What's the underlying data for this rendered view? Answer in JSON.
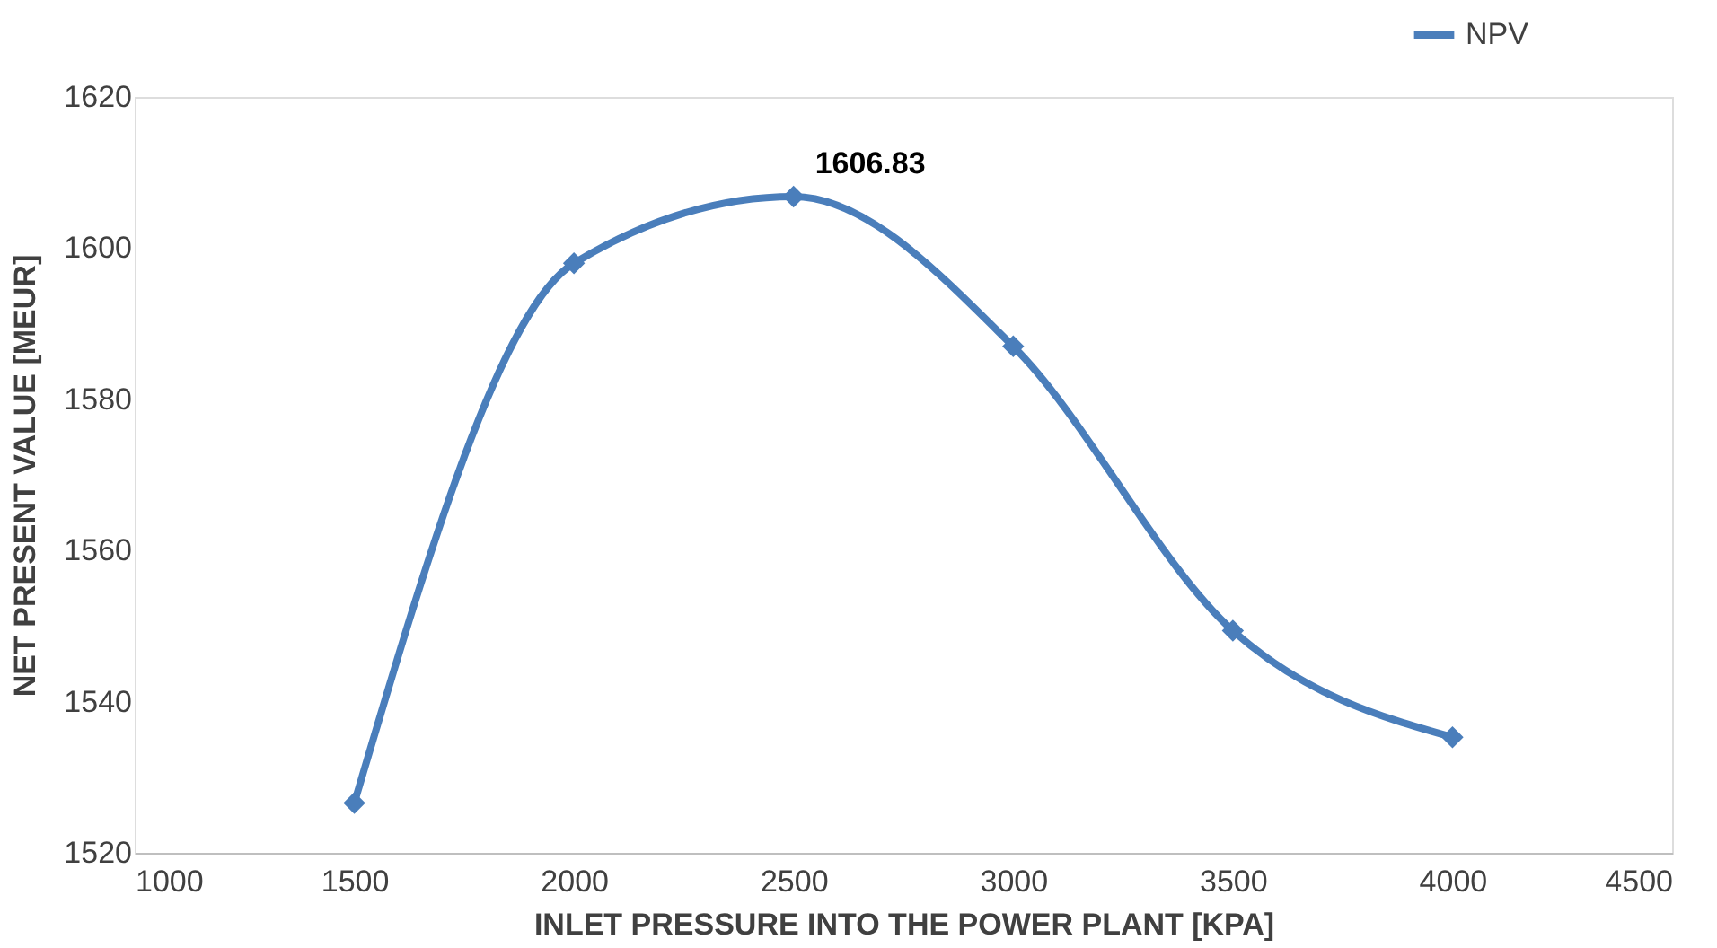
{
  "chart_data": {
    "type": "line",
    "xlabel": "INLET PRESSURE INTO THE POWER PLANT [KPA]",
    "ylabel": "NET PRESENT VALUE [MEUR]",
    "x": [
      1500,
      2000,
      2500,
      3000,
      3500,
      4000
    ],
    "series": [
      {
        "name": "NPV",
        "color": "#4a7ebb",
        "values": [
          1526.6,
          1598.0,
          1606.83,
          1587.0,
          1549.4,
          1535.3
        ]
      }
    ],
    "xlim": [
      1000,
      4500
    ],
    "xticks": [
      1000,
      1500,
      2000,
      2500,
      3000,
      3500,
      4000,
      4500
    ],
    "ylim": [
      1520,
      1620
    ],
    "yticks": [
      1520,
      1540,
      1560,
      1580,
      1600,
      1620
    ],
    "annotations": [
      {
        "text": "1606.83",
        "x": 2500,
        "y": 1606.83
      }
    ],
    "grid": false,
    "legend": "top right",
    "marker": "diamond",
    "line_style": "solid"
  }
}
